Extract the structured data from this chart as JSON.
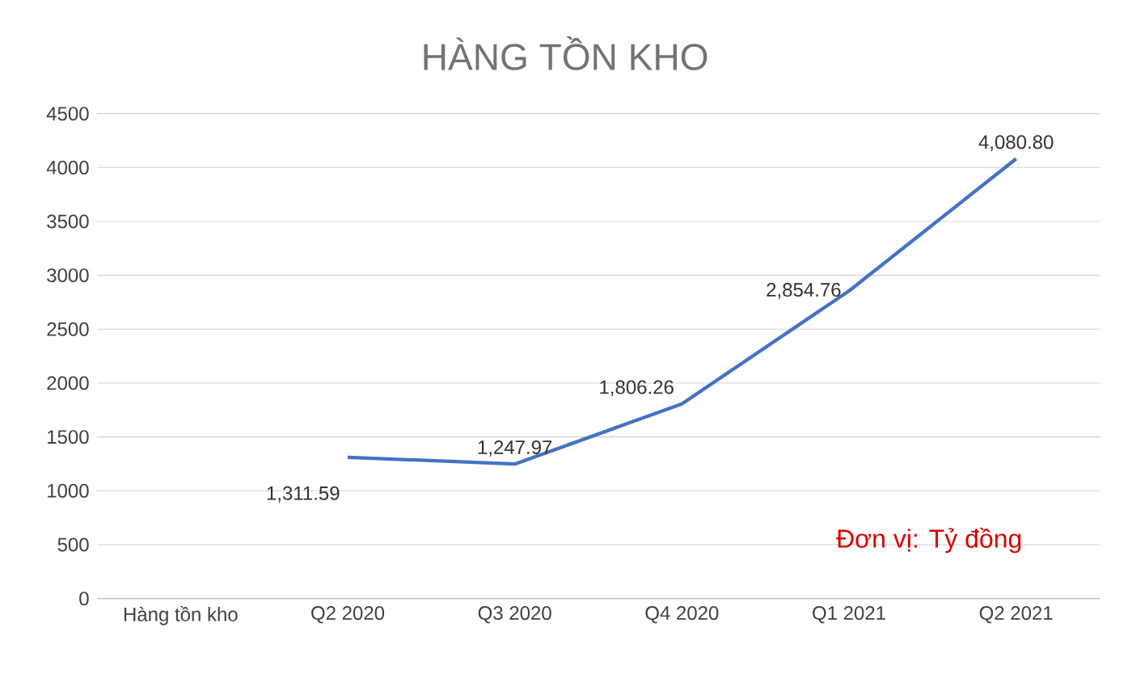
{
  "chart_data": {
    "type": "line",
    "title": "HÀNG TỒN KHO",
    "categories": [
      "Hàng tồn kho",
      "Q2 2020",
      "Q3 2020",
      "Q4 2020",
      "Q1 2021",
      "Q2 2021"
    ],
    "series": [
      {
        "color": "#4472c4",
        "values": [
          null,
          1311.59,
          1247.97,
          1806.26,
          2854.76,
          4080.8
        ],
        "value_labels": [
          null,
          "1,311.59",
          "1,247.97",
          "1,806.26",
          "2,854.76",
          "4,080.80"
        ]
      }
    ],
    "ylim": [
      0,
      4500
    ],
    "yticks": [
      0,
      500,
      1000,
      1500,
      2000,
      2500,
      3000,
      3500,
      4000,
      4500
    ],
    "grid": "y",
    "marker": "none",
    "line_style": "solid",
    "annotations": [
      "Đơn vị: Tỷ đồng"
    ]
  }
}
